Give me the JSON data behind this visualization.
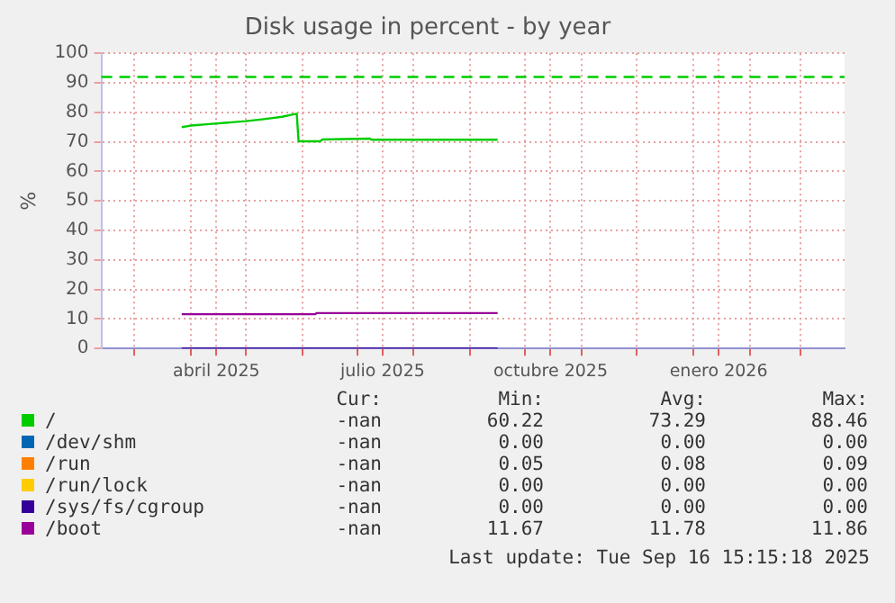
{
  "chart_data": {
    "type": "line",
    "title": "Disk usage in percent - by year",
    "ylabel": "%",
    "xlim": [
      "2025-02-11",
      "2026-03-25"
    ],
    "xticks": [
      {
        "value": "2025-03-01",
        "label": null
      },
      {
        "value": "2025-04-01",
        "label": null
      },
      {
        "value": "2025-04-15",
        "label": "abril 2025"
      },
      {
        "value": "2025-05-01",
        "label": null
      },
      {
        "value": "2025-06-01",
        "label": null
      },
      {
        "value": "2025-07-01",
        "label": null
      },
      {
        "value": "2025-07-15",
        "label": "julio 2025"
      },
      {
        "value": "2025-08-01",
        "label": null
      },
      {
        "value": "2025-09-01",
        "label": null
      },
      {
        "value": "2025-10-01",
        "label": null
      },
      {
        "value": "2025-10-15",
        "label": "octubre 2025"
      },
      {
        "value": "2025-11-01",
        "label": null
      },
      {
        "value": "2025-12-01",
        "label": null
      },
      {
        "value": "2026-01-01",
        "label": null
      },
      {
        "value": "2026-01-15",
        "label": "enero 2026"
      },
      {
        "value": "2026-02-01",
        "label": null
      },
      {
        "value": "2026-03-01",
        "label": null
      }
    ],
    "ylim": [
      0,
      100
    ],
    "yticks": [
      0,
      10,
      20,
      30,
      40,
      50,
      60,
      70,
      80,
      90,
      100
    ],
    "grid": true,
    "legend": "bottom",
    "line_style": "solid",
    "marker": "none",
    "ref_lines": [
      {
        "axis": "y",
        "value": 92,
        "color": "#00cc00",
        "line_style": "dashed"
      }
    ],
    "series": [
      {
        "name": "/",
        "color": "#00cc00",
        "x": [
          "2025-03-27",
          "2025-04-01",
          "2025-04-11",
          "2025-04-21",
          "2025-05-01",
          "2025-05-11",
          "2025-05-21",
          "2025-05-27",
          "2025-05-29",
          "2025-05-30",
          "2025-06-11",
          "2025-06-12",
          "2025-07-08",
          "2025-07-09",
          "2025-09-16"
        ],
        "values": [
          75,
          75.5,
          76,
          76.5,
          77,
          77.7,
          78.5,
          79.3,
          79.5,
          70.2,
          70.2,
          70.8,
          71.1,
          70.7,
          70.7
        ]
      },
      {
        "name": "/dev/shm",
        "color": "#0066b3"
      },
      {
        "name": "/run",
        "color": "#ff8000"
      },
      {
        "name": "/run/lock",
        "color": "#ffcc00"
      },
      {
        "name": "/sys/fs/cgroup",
        "color": "#330099",
        "x": [
          "2025-03-27",
          "2025-09-16"
        ],
        "values": [
          0,
          0
        ]
      },
      {
        "name": "/boot",
        "color": "#990099",
        "x": [
          "2025-03-27",
          "2025-06-08",
          "2025-06-09",
          "2025-09-16"
        ],
        "values": [
          11.6,
          11.6,
          12,
          12
        ]
      }
    ],
    "annotations": [
      "Cur: Min: Avg: Max:",
      "-nan 60.22 73.29 88.46",
      "-nan 0.00 0.00 0.00",
      "-nan 0.05 0.08 0.09",
      "-nan 0.00 0.00 0.00",
      "-nan 0.00 0.00 0.00",
      "-nan 11.67 11.78 11.86",
      "Last update: Tue Sep 16 15:15:18 2025"
    ]
  }
}
